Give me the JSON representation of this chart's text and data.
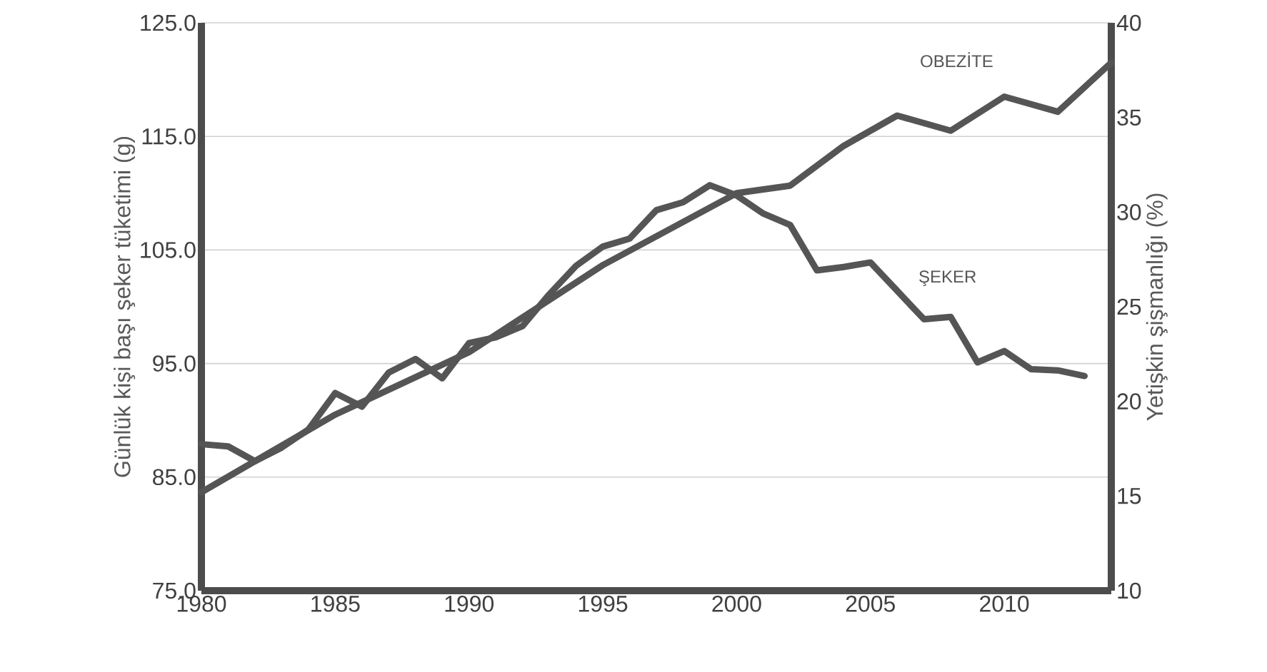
{
  "chart_data": {
    "type": "line",
    "ylabel": "Günlük kişi başı şeker tüketimi (g)",
    "y2label": "Yetişkin şişmanlığı (%)",
    "xlim": [
      1980,
      2014
    ],
    "xticks": [
      1980,
      1985,
      1990,
      1995,
      2000,
      2005,
      2010
    ],
    "ylim": [
      75,
      125
    ],
    "yticks": [
      {
        "value": 75,
        "label": "75.0"
      },
      {
        "value": 85,
        "label": "85.0"
      },
      {
        "value": 95,
        "label": "95.0"
      },
      {
        "value": 105,
        "label": "105.0"
      },
      {
        "value": 115,
        "label": "115.0"
      },
      {
        "value": 125,
        "label": "125.0"
      }
    ],
    "y2lim": [
      10,
      40
    ],
    "y2ticks": [
      10,
      15,
      20,
      25,
      30,
      35,
      40
    ],
    "grid": "y",
    "series": [
      {
        "name": "ŞEKER",
        "color": "#555555",
        "x": [
          1980,
          1981,
          1982,
          1983,
          1984,
          1985,
          1986,
          1987,
          1988,
          1989,
          1990,
          1991,
          1992,
          1993,
          1994,
          1995,
          1996,
          1997,
          1998,
          1999,
          2000,
          2001,
          2002,
          2003,
          2004,
          2005,
          2006,
          2007,
          2008,
          2009,
          2010,
          2011,
          2012,
          2013
        ],
        "values": [
          87.9,
          87.7,
          86.4,
          87.6,
          89.2,
          92.4,
          91.2,
          94.2,
          95.4,
          93.7,
          96.8,
          97.3,
          98.3,
          101.1,
          103.6,
          105.3,
          106.0,
          108.5,
          109.2,
          110.7,
          109.8,
          108.2,
          107.2,
          103.2,
          103.5,
          103.9,
          101.4,
          98.9,
          99.1,
          95.1,
          96.1,
          94.5,
          94.4,
          93.9
        ]
      },
      {
        "name": "OBEZİTE",
        "color": "#555555",
        "axis": "y2",
        "x": [
          1980,
          1985,
          1990,
          1995,
          2000,
          2002,
          2004,
          2006,
          2008,
          2010,
          2012,
          2014
        ],
        "values": [
          15.2,
          19.3,
          22.6,
          27.2,
          31.0,
          31.4,
          33.5,
          35.1,
          34.3,
          36.1,
          35.3,
          37.9
        ]
      }
    ]
  }
}
